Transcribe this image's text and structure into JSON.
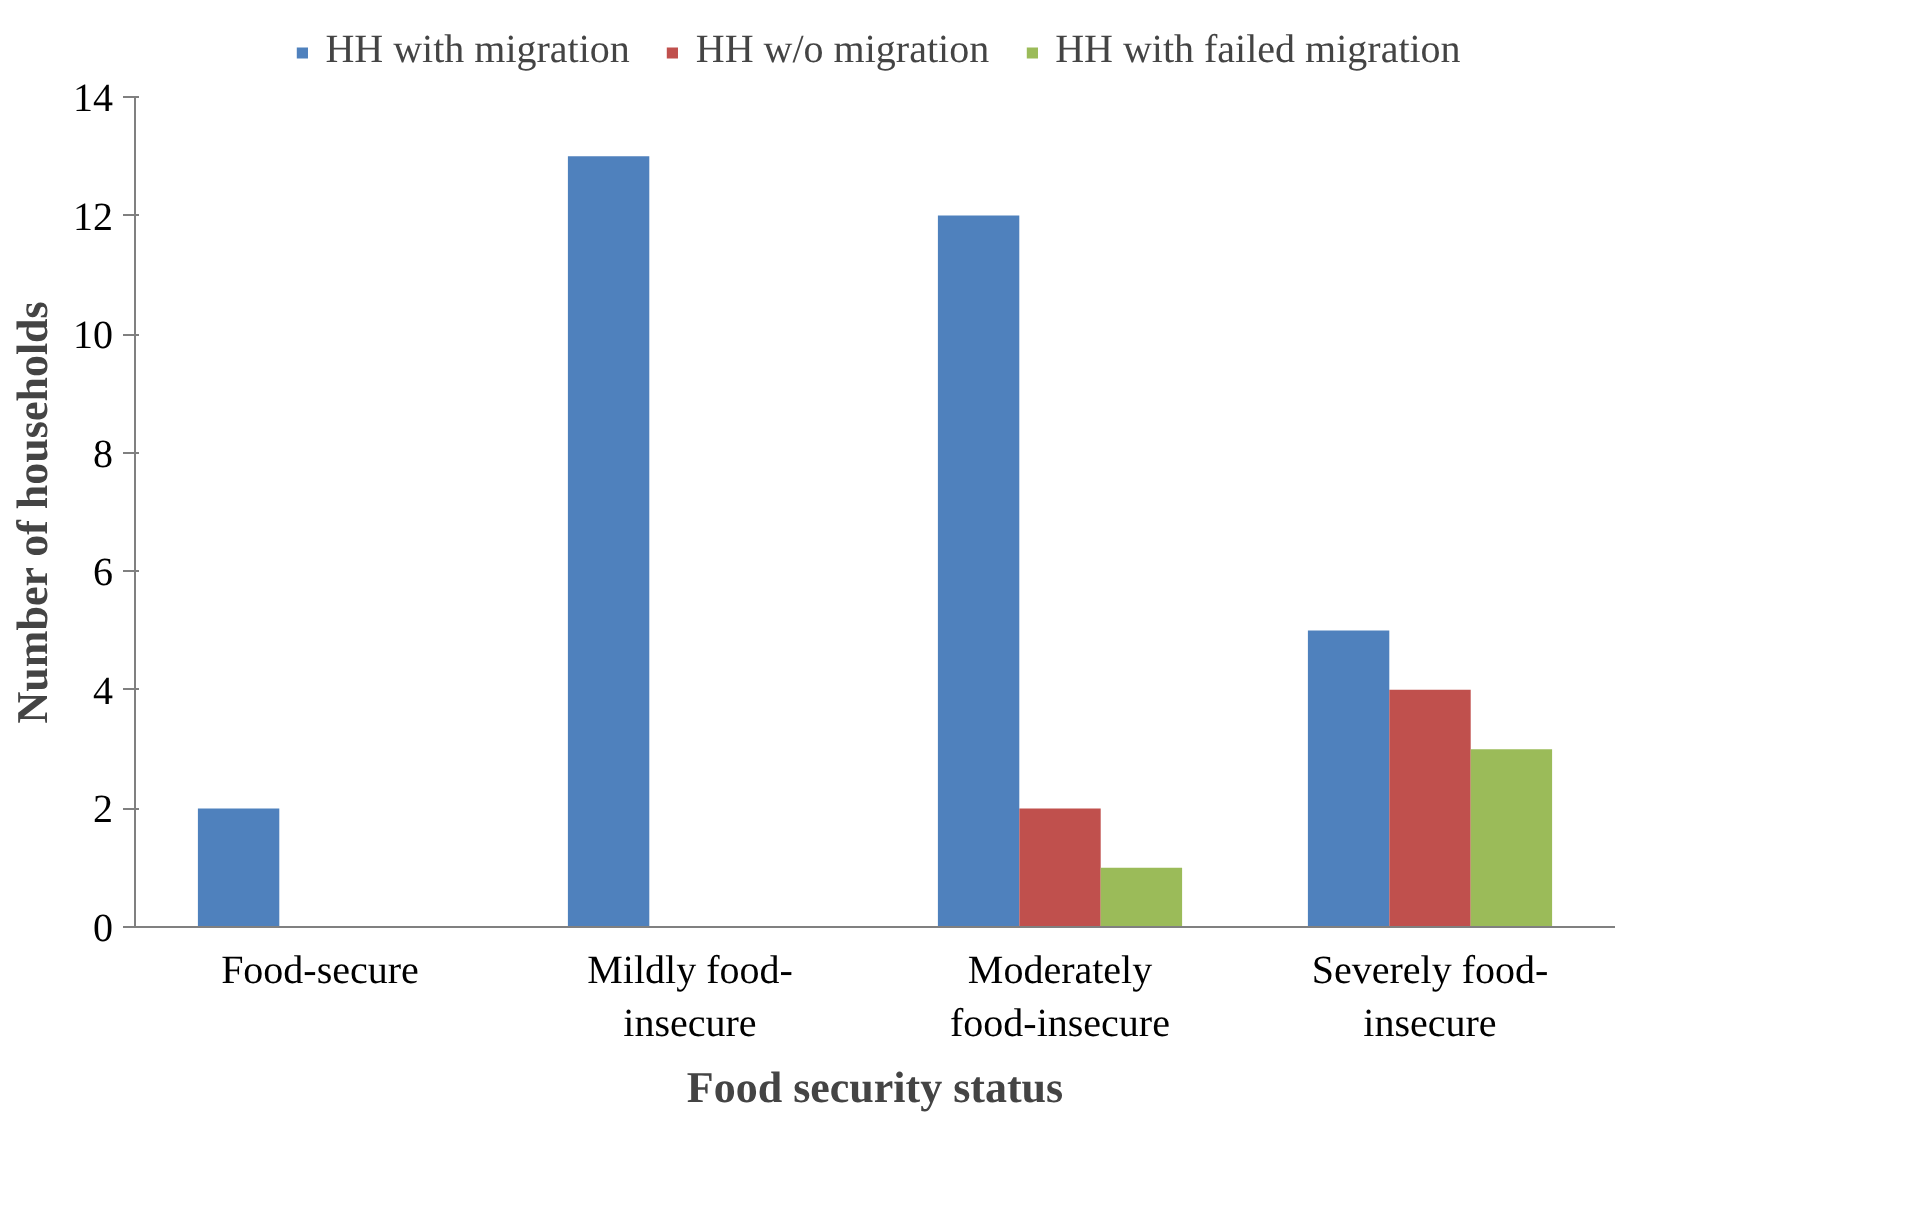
{
  "chart_data": {
    "type": "bar",
    "xlabel": "Food security status",
    "ylabel": "Number of households",
    "categories": [
      "Food-secure",
      "Mildly food-\ninsecure",
      "Moderately\nfood-insecure",
      "Severely food-\ninsecure"
    ],
    "series": [
      {
        "name": "HH with migration",
        "color": "#4f81bd",
        "values": [
          2,
          13,
          12,
          5
        ]
      },
      {
        "name": "HH w/o migration",
        "color": "#c0504d",
        "values": [
          0,
          0,
          2,
          4
        ]
      },
      {
        "name": "HH with failed migration",
        "color": "#9bbb59",
        "values": [
          0,
          0,
          1,
          3
        ]
      }
    ],
    "ylim": [
      0,
      14
    ],
    "yticks": [
      0,
      2,
      4,
      6,
      8,
      10,
      12,
      14
    ],
    "grid": false,
    "legend": "top"
  }
}
